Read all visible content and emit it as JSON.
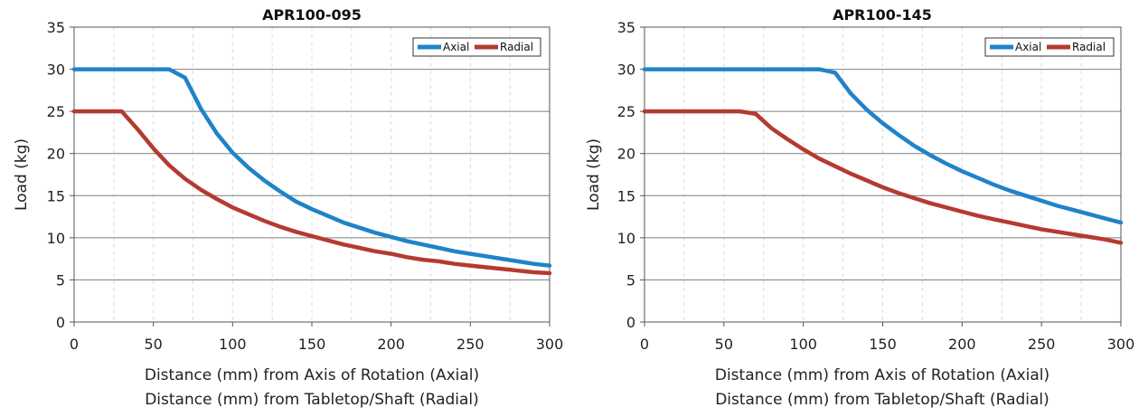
{
  "chart_data": [
    {
      "type": "line",
      "title": "APR100-095",
      "ylabel": "Load (kg)",
      "xlabel": [
        "Distance (mm) from Axis of Rotation (Axial)",
        "Distance (mm) from Tabletop/Shaft (Radial)"
      ],
      "xlim": [
        0,
        300
      ],
      "ylim": [
        0,
        35
      ],
      "xticks": [
        "0",
        "50",
        "100",
        "150",
        "200",
        "250",
        "300"
      ],
      "yticks": [
        "0",
        "5",
        "10",
        "15",
        "20",
        "25",
        "30",
        "35"
      ],
      "legend": "top-right",
      "grid": true,
      "series": [
        {
          "name": "Axial",
          "color": "#1f83c8",
          "x": [
            0,
            10,
            20,
            30,
            40,
            50,
            60,
            70,
            80,
            90,
            100,
            110,
            120,
            130,
            140,
            150,
            160,
            170,
            180,
            190,
            200,
            210,
            220,
            230,
            240,
            250,
            260,
            270,
            280,
            290,
            300
          ],
          "y": [
            30,
            30,
            30,
            30,
            30,
            30,
            30,
            29,
            25.3,
            22.4,
            20.1,
            18.3,
            16.8,
            15.5,
            14.3,
            13.4,
            12.6,
            11.8,
            11.2,
            10.6,
            10.1,
            9.6,
            9.2,
            8.8,
            8.4,
            8.1,
            7.8,
            7.5,
            7.2,
            6.9,
            6.7
          ]
        },
        {
          "name": "Radial",
          "color": "#b43a2f",
          "x": [
            0,
            10,
            20,
            30,
            40,
            50,
            60,
            70,
            80,
            90,
            100,
            110,
            120,
            130,
            140,
            150,
            160,
            170,
            180,
            190,
            200,
            210,
            220,
            230,
            240,
            250,
            260,
            270,
            280,
            290,
            300
          ],
          "y": [
            25,
            25,
            25,
            25,
            22.9,
            20.6,
            18.6,
            17.0,
            15.7,
            14.6,
            13.6,
            12.8,
            12.0,
            11.3,
            10.7,
            10.2,
            9.7,
            9.2,
            8.8,
            8.4,
            8.1,
            7.7,
            7.4,
            7.2,
            6.9,
            6.7,
            6.5,
            6.3,
            6.1,
            5.9,
            5.8
          ]
        }
      ]
    },
    {
      "type": "line",
      "title": "APR100-145",
      "ylabel": "Load (kg)",
      "xlabel": [
        "Distance (mm) from Axis of Rotation (Axial)",
        "Distance (mm) from Tabletop/Shaft (Radial)"
      ],
      "xlim": [
        0,
        300
      ],
      "ylim": [
        0,
        35
      ],
      "xticks": [
        "0",
        "50",
        "100",
        "150",
        "200",
        "250",
        "300"
      ],
      "yticks": [
        "0",
        "5",
        "10",
        "15",
        "20",
        "25",
        "30",
        "35"
      ],
      "legend": "top-right",
      "grid": true,
      "series": [
        {
          "name": "Axial",
          "color": "#1f83c8",
          "x": [
            0,
            20,
            40,
            60,
            80,
            100,
            110,
            120,
            130,
            140,
            150,
            160,
            170,
            180,
            190,
            200,
            210,
            220,
            230,
            240,
            250,
            260,
            270,
            280,
            290,
            300
          ],
          "y": [
            30,
            30,
            30,
            30,
            30,
            30,
            30,
            29.6,
            27.1,
            25.2,
            23.6,
            22.2,
            20.9,
            19.8,
            18.8,
            17.9,
            17.1,
            16.3,
            15.6,
            15.0,
            14.4,
            13.8,
            13.3,
            12.8,
            12.3,
            11.8
          ]
        },
        {
          "name": "Radial",
          "color": "#b43a2f",
          "x": [
            0,
            20,
            40,
            60,
            70,
            80,
            90,
            100,
            110,
            120,
            130,
            140,
            150,
            160,
            170,
            180,
            190,
            200,
            210,
            220,
            230,
            240,
            250,
            260,
            270,
            280,
            290,
            300
          ],
          "y": [
            25,
            25,
            25,
            25,
            24.7,
            23.0,
            21.7,
            20.5,
            19.4,
            18.5,
            17.6,
            16.8,
            16.0,
            15.3,
            14.7,
            14.1,
            13.6,
            13.1,
            12.6,
            12.2,
            11.8,
            11.4,
            11.0,
            10.7,
            10.4,
            10.1,
            9.8,
            9.4
          ]
        }
      ]
    }
  ]
}
